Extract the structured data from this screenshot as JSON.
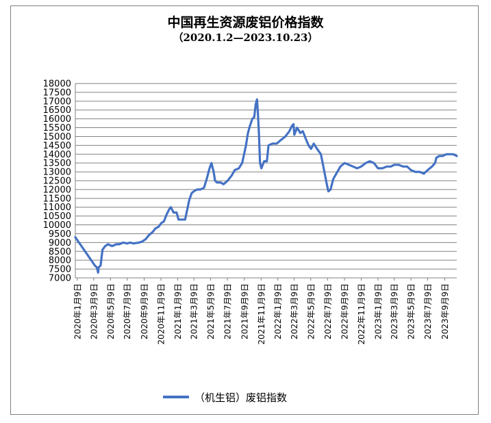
{
  "chart_data": {
    "type": "line",
    "title": "中国再生资源废铝价格指数",
    "subtitle": "（2020.1.2—2023.10.23）",
    "xlabel": "",
    "ylabel": "",
    "ylim": [
      7000,
      18000
    ],
    "yticks": [
      7000,
      7500,
      8000,
      8500,
      9000,
      9500,
      10000,
      10500,
      11000,
      11500,
      12000,
      12500,
      13000,
      13500,
      14000,
      14500,
      15000,
      15500,
      16000,
      16500,
      17000,
      17500,
      18000
    ],
    "xlim": [
      "2020-01-02",
      "2023-10-23"
    ],
    "xtick_labels": [
      {
        "date": "2020-01-09",
        "label": "2020年1月9日"
      },
      {
        "date": "2020-03-09",
        "label": "2020年3月9日"
      },
      {
        "date": "2020-05-09",
        "label": "2020年5月9日"
      },
      {
        "date": "2020-07-09",
        "label": "2020年7月9日"
      },
      {
        "date": "2020-09-09",
        "label": "2020年9月9日"
      },
      {
        "date": "2020-11-09",
        "label": "2020年11月9日"
      },
      {
        "date": "2021-01-09",
        "label": "2021年1月9日"
      },
      {
        "date": "2021-03-09",
        "label": "2021年3月9日"
      },
      {
        "date": "2021-05-09",
        "label": "2021年5月9日"
      },
      {
        "date": "2021-07-09",
        "label": "2021年7月9日"
      },
      {
        "date": "2021-09-09",
        "label": "2021年9月9日"
      },
      {
        "date": "2021-11-09",
        "label": "2021年11月9日"
      },
      {
        "date": "2022-01-09",
        "label": "2022年1月9日"
      },
      {
        "date": "2022-03-09",
        "label": "2022年3月9日"
      },
      {
        "date": "2022-05-09",
        "label": "2022年5月9日"
      },
      {
        "date": "2022-07-09",
        "label": "2022年7月9日"
      },
      {
        "date": "2022-09-09",
        "label": "2022年9月9日"
      },
      {
        "date": "2022-11-09",
        "label": "2022年11月9日"
      },
      {
        "date": "2023-01-09",
        "label": "2023年1月9日"
      },
      {
        "date": "2023-03-09",
        "label": "2023年3月9日"
      },
      {
        "date": "2023-05-09",
        "label": "2023年5月9日"
      },
      {
        "date": "2023-07-09",
        "label": "2023年7月9日"
      },
      {
        "date": "2023-09-09",
        "label": "2023年9月9日"
      }
    ],
    "grid": "horizontal",
    "legend_position": "bottom",
    "series": [
      {
        "name": "（机生铝）废铝指数",
        "color": "#4472C4",
        "points": [
          [
            "2020-01-02",
            9300
          ],
          [
            "2020-03-13",
            7700
          ],
          [
            "2020-03-20",
            7600
          ],
          [
            "2020-03-25",
            7300
          ],
          [
            "2020-03-27",
            7600
          ],
          [
            "2020-04-03",
            7700
          ],
          [
            "2020-04-10",
            8600
          ],
          [
            "2020-04-20",
            8800
          ],
          [
            "2020-04-30",
            8900
          ],
          [
            "2020-05-15",
            8800
          ],
          [
            "2020-05-30",
            8900
          ],
          [
            "2020-06-10",
            8900
          ],
          [
            "2020-06-25",
            9000
          ],
          [
            "2020-07-09",
            8950
          ],
          [
            "2020-07-20",
            9000
          ],
          [
            "2020-08-01",
            8950
          ],
          [
            "2020-08-20",
            9000
          ],
          [
            "2020-09-01",
            9050
          ],
          [
            "2020-09-15",
            9200
          ],
          [
            "2020-09-25",
            9400
          ],
          [
            "2020-10-10",
            9600
          ],
          [
            "2020-10-20",
            9800
          ],
          [
            "2020-11-01",
            9900
          ],
          [
            "2020-11-10",
            10100
          ],
          [
            "2020-11-20",
            10200
          ],
          [
            "2020-11-30",
            10600
          ],
          [
            "2020-12-10",
            10900
          ],
          [
            "2020-12-15",
            11000
          ],
          [
            "2020-12-25",
            10700
          ],
          [
            "2021-01-05",
            10700
          ],
          [
            "2021-01-12",
            10300
          ],
          [
            "2021-01-25",
            10300
          ],
          [
            "2021-02-05",
            10300
          ],
          [
            "2021-02-20",
            11400
          ],
          [
            "2021-03-01",
            11800
          ],
          [
            "2021-03-09",
            11900
          ],
          [
            "2021-03-20",
            12000
          ],
          [
            "2021-04-01",
            12000
          ],
          [
            "2021-04-15",
            12100
          ],
          [
            "2021-04-25",
            12600
          ],
          [
            "2021-05-05",
            13200
          ],
          [
            "2021-05-12",
            13500
          ],
          [
            "2021-05-20",
            13000
          ],
          [
            "2021-05-25",
            12500
          ],
          [
            "2021-06-01",
            12400
          ],
          [
            "2021-06-15",
            12400
          ],
          [
            "2021-06-25",
            12300
          ],
          [
            "2021-07-10",
            12500
          ],
          [
            "2021-07-25",
            12800
          ],
          [
            "2021-08-05",
            13100
          ],
          [
            "2021-08-20",
            13200
          ],
          [
            "2021-09-01",
            13500
          ],
          [
            "2021-09-08",
            14000
          ],
          [
            "2021-09-15",
            14500
          ],
          [
            "2021-09-22",
            15200
          ],
          [
            "2021-09-29",
            15600
          ],
          [
            "2021-10-08",
            16000
          ],
          [
            "2021-10-15",
            16100
          ],
          [
            "2021-10-20",
            16800
          ],
          [
            "2021-10-25",
            17100
          ],
          [
            "2021-10-28",
            16400
          ],
          [
            "2021-11-01",
            15200
          ],
          [
            "2021-11-05",
            13500
          ],
          [
            "2021-11-10",
            13200
          ],
          [
            "2021-11-15",
            13400
          ],
          [
            "2021-11-20",
            13600
          ],
          [
            "2021-11-30",
            13600
          ],
          [
            "2021-12-06",
            14500
          ],
          [
            "2021-12-20",
            14600
          ],
          [
            "2022-01-05",
            14600
          ],
          [
            "2022-01-20",
            14800
          ],
          [
            "2022-02-05",
            15000
          ],
          [
            "2022-02-20",
            15300
          ],
          [
            "2022-03-01",
            15600
          ],
          [
            "2022-03-07",
            15700
          ],
          [
            "2022-03-10",
            15100
          ],
          [
            "2022-03-20",
            15500
          ],
          [
            "2022-04-01",
            15200
          ],
          [
            "2022-04-10",
            15300
          ],
          [
            "2022-04-20",
            14900
          ],
          [
            "2022-05-01",
            14500
          ],
          [
            "2022-05-10",
            14300
          ],
          [
            "2022-05-20",
            14600
          ],
          [
            "2022-06-01",
            14300
          ],
          [
            "2022-06-15",
            14000
          ],
          [
            "2022-06-25",
            13200
          ],
          [
            "2022-07-05",
            12400
          ],
          [
            "2022-07-12",
            11900
          ],
          [
            "2022-07-20",
            12000
          ],
          [
            "2022-07-30",
            12600
          ],
          [
            "2022-08-10",
            12900
          ],
          [
            "2022-08-25",
            13300
          ],
          [
            "2022-09-09",
            13500
          ],
          [
            "2022-09-25",
            13400
          ],
          [
            "2022-10-10",
            13300
          ],
          [
            "2022-10-25",
            13200
          ],
          [
            "2022-11-09",
            13300
          ],
          [
            "2022-11-25",
            13500
          ],
          [
            "2022-12-10",
            13600
          ],
          [
            "2022-12-25",
            13500
          ],
          [
            "2023-01-09",
            13200
          ],
          [
            "2023-01-25",
            13200
          ],
          [
            "2023-02-10",
            13300
          ],
          [
            "2023-02-25",
            13300
          ],
          [
            "2023-03-09",
            13400
          ],
          [
            "2023-03-25",
            13400
          ],
          [
            "2023-04-10",
            13300
          ],
          [
            "2023-04-25",
            13300
          ],
          [
            "2023-05-09",
            13100
          ],
          [
            "2023-05-25",
            13000
          ],
          [
            "2023-06-10",
            13000
          ],
          [
            "2023-06-25",
            12900
          ],
          [
            "2023-07-09",
            13100
          ],
          [
            "2023-07-25",
            13300
          ],
          [
            "2023-08-05",
            13500
          ],
          [
            "2023-08-10",
            13800
          ],
          [
            "2023-08-20",
            13900
          ],
          [
            "2023-09-01",
            13900
          ],
          [
            "2023-09-15",
            14000
          ],
          [
            "2023-10-01",
            14000
          ],
          [
            "2023-10-10",
            14000
          ],
          [
            "2023-10-23",
            13900
          ]
        ]
      }
    ]
  }
}
